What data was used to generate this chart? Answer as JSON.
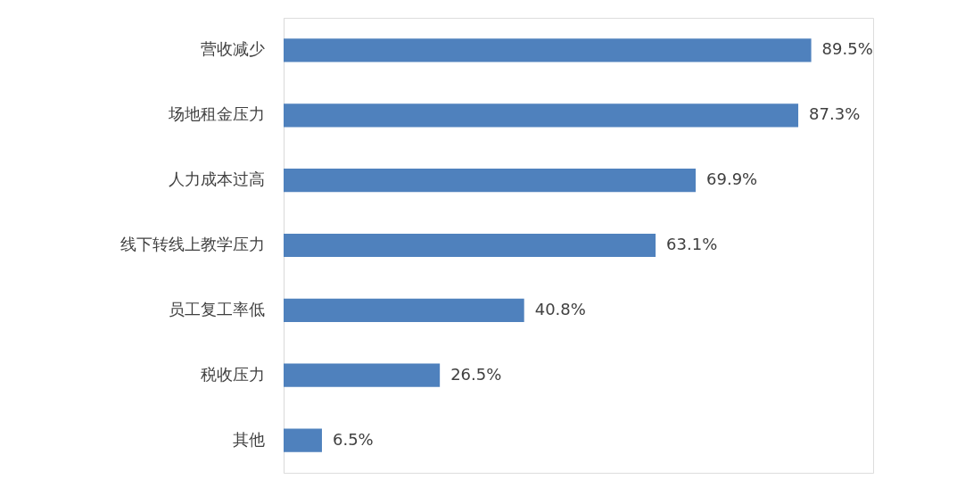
{
  "chart_data": {
    "type": "bar",
    "orientation": "horizontal",
    "categories": [
      "营收减少",
      "场地租金压力",
      "人力成本过高",
      "线下转线上教学压力",
      "员工复工率低",
      "税收压力",
      "其他"
    ],
    "values": [
      89.5,
      87.3,
      69.9,
      63.1,
      40.8,
      26.5,
      6.5
    ],
    "value_labels": [
      "89.5%",
      "87.3%",
      "69.9%",
      "63.1%",
      "40.8%",
      "26.5%",
      "6.5%"
    ],
    "color": "#4f81bd",
    "xlim": [
      0,
      100
    ],
    "tick_labels": "y",
    "grid": false
  }
}
